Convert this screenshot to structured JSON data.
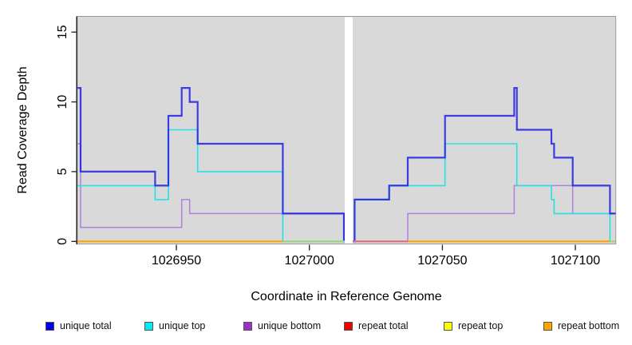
{
  "chart_data": {
    "type": "line",
    "subtype": "step-coverage-plot",
    "title": "",
    "xlabel": "Coordinate in Reference Genome",
    "ylabel": "Read Coverage Depth",
    "xlim": [
      1026912.7,
      1027115.2
    ],
    "ylim": [
      0,
      16
    ],
    "x_ticks": [
      1026950,
      1027000,
      1027050,
      1027100
    ],
    "y_ticks": [
      0,
      5,
      10,
      15
    ],
    "panel_background": "#D9D9D9",
    "gap": {
      "x_start": 1027013.3,
      "x_end": 1027016.3
    },
    "series": [
      {
        "name": "repeat total",
        "color": "#EE0000",
        "width": 1.5,
        "opacity": 1,
        "points": [
          [
            1026912.7,
            0
          ]
        ]
      },
      {
        "name": "repeat top",
        "color": "#FFFF00",
        "width": 1.5,
        "opacity": 1,
        "points": [
          [
            1026912.7,
            0
          ]
        ]
      },
      {
        "name": "repeat bottom",
        "color": "#FFA500",
        "width": 1.8,
        "opacity": 1,
        "points": [
          [
            1026912.7,
            0
          ]
        ]
      },
      {
        "name": "unique bottom",
        "color": "#B27FDC",
        "width": 1.5,
        "opacity": 1,
        "points": [
          [
            1026912.7,
            7
          ],
          [
            1026914,
            1
          ],
          [
            1026952,
            3
          ],
          [
            1026955,
            2
          ],
          [
            1027013,
            0
          ],
          [
            1027037,
            2
          ],
          [
            1027077,
            4
          ],
          [
            1027099,
            2
          ]
        ]
      },
      {
        "name": "unique top",
        "color": "#25E2E2",
        "width": 1.6,
        "opacity": 1,
        "points": [
          [
            1026912.7,
            4
          ],
          [
            1026942,
            3
          ],
          [
            1026947,
            8
          ],
          [
            1026958,
            5
          ],
          [
            1026990,
            0
          ],
          [
            1027017,
            3
          ],
          [
            1027030,
            4
          ],
          [
            1027051,
            7
          ],
          [
            1027078,
            4
          ],
          [
            1027091,
            3
          ],
          [
            1027092,
            2
          ],
          [
            1027113,
            0
          ]
        ]
      },
      {
        "name": "unique total",
        "color": "#1A1AE6",
        "width": 2.2,
        "opacity": 0.82,
        "points": [
          [
            1026912.7,
            11
          ],
          [
            1026914,
            5
          ],
          [
            1026942,
            4
          ],
          [
            1026947,
            9
          ],
          [
            1026952,
            11
          ],
          [
            1026955,
            10
          ],
          [
            1026958,
            7
          ],
          [
            1026990,
            2
          ],
          [
            1027013,
            0
          ],
          [
            1027017,
            3
          ],
          [
            1027030,
            4
          ],
          [
            1027037,
            6
          ],
          [
            1027051,
            9
          ],
          [
            1027077,
            11
          ],
          [
            1027078,
            8
          ],
          [
            1027091,
            7
          ],
          [
            1027092,
            6
          ],
          [
            1027099,
            4
          ],
          [
            1027113,
            2
          ]
        ]
      }
    ],
    "baseline_segments": [
      {
        "x0": 1026912.7,
        "x1": 1026990,
        "color": "#FFA500"
      },
      {
        "x0": 1026990,
        "x1": 1027013.3,
        "color": "#8FD98F"
      },
      {
        "x0": 1027016.3,
        "x1": 1027037,
        "color": "#DD6B94"
      },
      {
        "x0": 1027037,
        "x1": 1027113,
        "color": "#FFA500"
      },
      {
        "x0": 1027113,
        "x1": 1027115.2,
        "color": "#8FD98F"
      }
    ],
    "legend": [
      {
        "label": "unique total",
        "color": "#0000EE"
      },
      {
        "label": "unique top",
        "color": "#00EEEE"
      },
      {
        "label": "unique bottom",
        "color": "#9932CC"
      },
      {
        "label": "repeat total",
        "color": "#EE0000"
      },
      {
        "label": "repeat top",
        "color": "#FFFF00"
      },
      {
        "label": "repeat bottom",
        "color": "#FFA500"
      }
    ]
  }
}
